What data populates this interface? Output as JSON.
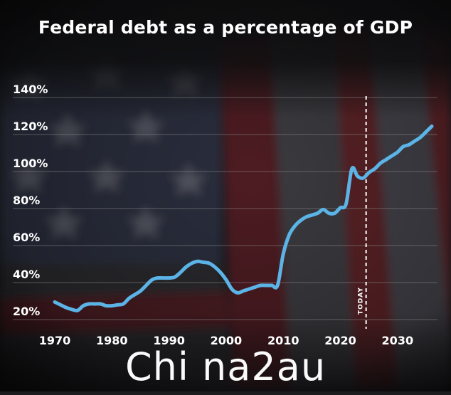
{
  "title": "Federal debt as a percentage of GDP",
  "watermark": "Chi na2au",
  "colors": {
    "line": "#5bb3e6",
    "text": "#ffffff",
    "grid": "#8a8a8a",
    "background": "#1c1c1f",
    "flag_red": "#5a2026",
    "flag_blue": "#2c2f3e"
  },
  "chart_data": {
    "type": "line",
    "title": "Federal debt as a percentage of GDP",
    "xlabel": "",
    "ylabel": "",
    "xlim": [
      1969,
      2037
    ],
    "ylim": [
      18,
      142
    ],
    "x_ticks": [
      1970,
      1980,
      1990,
      2000,
      2010,
      2020,
      2030
    ],
    "x_tick_labels": [
      "1970",
      "1980",
      "1990",
      "2000",
      "2010",
      "2020",
      "2030"
    ],
    "y_ticks": [
      20,
      40,
      60,
      80,
      100,
      120,
      140
    ],
    "y_tick_labels": [
      "20%",
      "40%",
      "60%",
      "80%",
      "100%",
      "120%",
      "140%"
    ],
    "grid": "horizontal",
    "legend": "none",
    "annotation": {
      "label": "TODAY",
      "x": 2024.5
    },
    "series": [
      {
        "x": [
          1970,
          1971,
          1972,
          1973,
          1974,
          1975,
          1976,
          1977,
          1978,
          1979,
          1980,
          1981,
          1982,
          1983,
          1984,
          1985,
          1986,
          1987,
          1988,
          1989,
          1990,
          1991,
          1992,
          1993,
          1994,
          1995,
          1996,
          1997,
          1998,
          1999,
          2000,
          2001,
          2002,
          2003,
          2004,
          2005,
          2006,
          2007,
          2008,
          2009,
          2010,
          2011,
          2012,
          2013,
          2014,
          2015,
          2016,
          2017,
          2018,
          2019,
          2020,
          2021,
          2022,
          2023,
          2024,
          2025,
          2026,
          2027,
          2028,
          2029,
          2030,
          2031,
          2032,
          2033,
          2034,
          2035,
          2036
        ],
        "values": [
          26,
          24.5,
          23,
          22,
          21.5,
          24,
          25,
          25,
          25,
          24,
          24,
          24.5,
          25,
          28,
          30,
          32,
          35,
          38,
          39,
          39,
          39,
          39.5,
          42,
          45,
          47,
          48,
          47.5,
          47,
          45,
          42,
          38,
          33,
          31,
          32,
          33,
          34,
          35,
          35,
          35,
          35,
          52,
          62,
          67,
          70,
          72,
          73,
          74,
          76,
          74,
          74,
          77,
          79,
          98,
          94,
          93,
          96,
          98,
          101,
          103,
          105,
          107,
          110,
          111,
          113,
          115,
          118,
          121
        ]
      }
    ]
  }
}
